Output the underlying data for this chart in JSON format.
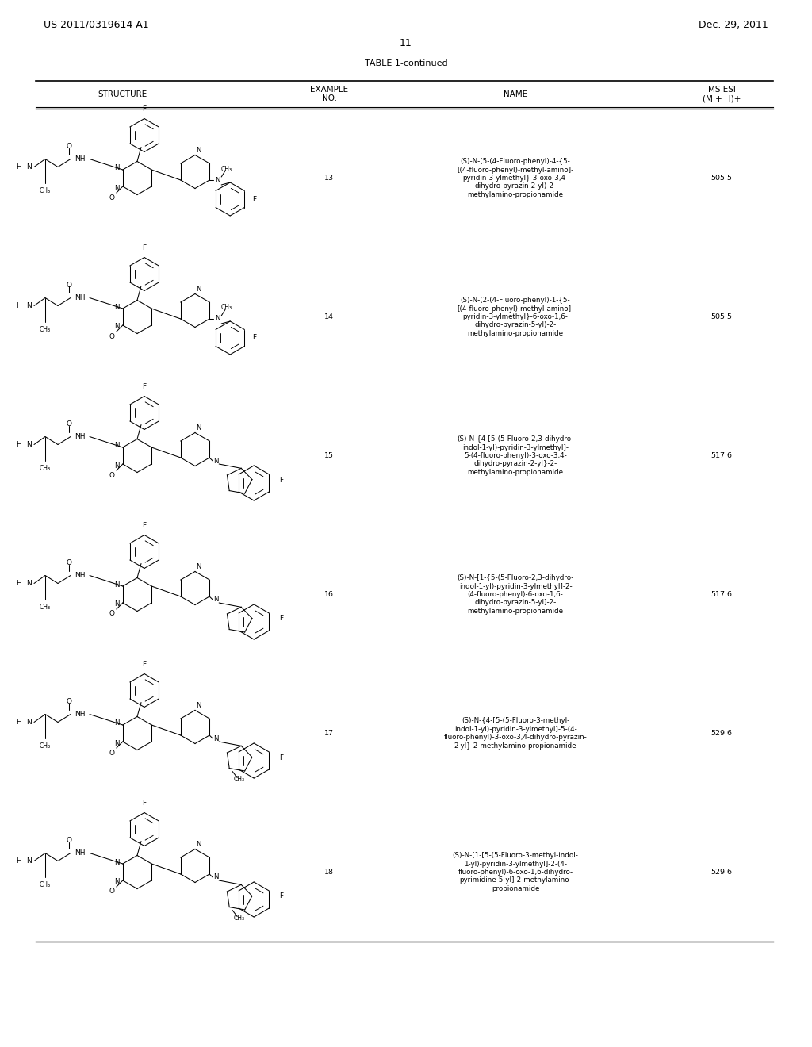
{
  "header_left": "US 2011/0319614 A1",
  "header_right": "Dec. 29, 2011",
  "page_number": "11",
  "table_title": "TABLE 1-continued",
  "col_headers": [
    "STRUCTURE",
    "EXAMPLE\nNO.",
    "NAME",
    "MS ESI\n(M + H)+"
  ],
  "rows": [
    {
      "example_no": "13",
      "name": "(S)-N-(5-(4-Fluoro-phenyl)-4-{5-\n[(4-fluoro-phenyl)-methyl-amino]-\npyridin-3-ylmethyl}-3-oxo-3,4-\ndihydro-pyrazin-2-yl)-2-\nmethylamino-propionamide",
      "ms_esi": "505.5",
      "structure_img_index": 0
    },
    {
      "example_no": "14",
      "name": "(S)-N-(2-(4-Fluoro-phenyl)-1-{5-\n[(4-fluoro-phenyl)-methyl-amino]-\npyridin-3-ylmethyl}-6-oxo-1,6-\ndihydro-pyrazin-5-yl)-2-\nmethylamino-propionamide",
      "ms_esi": "505.5",
      "structure_img_index": 1
    },
    {
      "example_no": "15",
      "name": "(S)-N-{4-[5-(5-Fluoro-2,3-dihydro-\nindol-1-yl)-pyridin-3-ylmethyl]-\n5-(4-fluoro-phenyl)-3-oxo-3,4-\ndihydro-pyrazin-2-yl}-2-\nmethylamino-propionamide",
      "ms_esi": "517.6",
      "structure_img_index": 2
    },
    {
      "example_no": "16",
      "name": "(S)-N-[1-{5-(5-Fluoro-2,3-dihydro-\nindol-1-yl)-pyridin-3-ylmethyl]-2-\n(4-fluoro-phenyl)-6-oxo-1,6-\ndihydro-pyrazin-5-yl]-2-\nmethylamino-propionamide",
      "ms_esi": "517.6",
      "structure_img_index": 3
    },
    {
      "example_no": "17",
      "name": "(S)-N-{4-[5-(5-Fluoro-3-methyl-\nindol-1-yl)-pyridin-3-ylmethyl]-5-(4-\nfluoro-phenyl)-3-oxo-3,4-dihydro-pyrazin-\n2-yl}-2-methylamino-propionamide",
      "ms_esi": "529.6",
      "structure_img_index": 4
    },
    {
      "example_no": "18",
      "name": "(S)-N-[1-[5-(5-Fluoro-3-methyl-indol-\n1-yl)-pyridin-3-ylmethyl]-2-(4-\nfluoro-phenyl)-6-oxo-1,6-dihydro-\npyrimidine-5-yl]-2-methylamino-\npropionamide",
      "ms_esi": "529.6",
      "structure_img_index": 5
    }
  ],
  "bg_color": "#ffffff",
  "text_color": "#000000",
  "font_size_header": 9,
  "font_size_body": 7.5,
  "font_size_col_header": 7.5
}
